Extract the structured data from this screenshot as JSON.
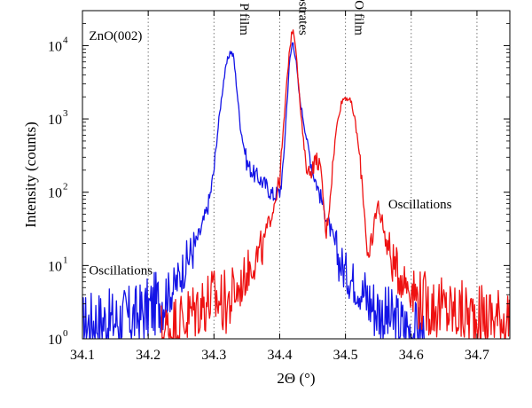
{
  "chart_data": {
    "type": "line",
    "title": "",
    "xlabel": "2Θ (°)",
    "ylabel": "Intensity (counts)",
    "xlim": [
      34.1,
      34.75
    ],
    "ylim": [
      1,
      30000
    ],
    "y_scale": "log",
    "grid": "dotted vertical",
    "x_ticks": [
      34.1,
      34.2,
      34.3,
      34.4,
      34.5,
      34.6,
      34.7
    ],
    "x_tick_labels": [
      "34.1",
      "34.2",
      "34.3",
      "34.4",
      "34.5",
      "34.6",
      "34.7"
    ],
    "y_ticks": [
      1,
      10,
      100,
      1000,
      10000
    ],
    "y_tick_labels": [
      "10",
      "10",
      "10",
      "10",
      "10"
    ],
    "y_tick_exponents": [
      "0",
      "1",
      "2",
      "3",
      "4"
    ],
    "colors": {
      "blue_series": "#1414e6",
      "red_series": "#ee1111",
      "axis": "#000000",
      "grid": "#555555"
    },
    "annotations": [
      {
        "text": "ZnO(002)",
        "x": 34.11,
        "y": 12000,
        "orientation": "horizontal"
      },
      {
        "text": "ZnMgO: P film",
        "x": 34.34,
        "y": 12000,
        "orientation": "vertical"
      },
      {
        "text": "ZnO substrates",
        "x": 34.43,
        "y": 12000,
        "orientation": "vertical"
      },
      {
        "text": "ZnMgO film",
        "x": 34.515,
        "y": 12000,
        "orientation": "vertical"
      },
      {
        "text": "Oscillations",
        "x": 34.11,
        "y": 7.5,
        "orientation": "horizontal"
      },
      {
        "text": "Oscillations",
        "x": 34.565,
        "y": 60,
        "orientation": "horizontal"
      }
    ],
    "series": [
      {
        "color": "#1414e6",
        "x": [
          34.1,
          34.12,
          34.14,
          34.16,
          34.18,
          34.2,
          34.22,
          34.24,
          34.25,
          34.26,
          34.27,
          34.28,
          34.29,
          34.295,
          34.3,
          34.305,
          34.31,
          34.315,
          34.32,
          34.325,
          34.33,
          34.335,
          34.34,
          34.35,
          34.36,
          34.37,
          34.38,
          34.39,
          34.4,
          34.405,
          34.41,
          34.415,
          34.42,
          34.425,
          34.43,
          34.44,
          34.45,
          34.46,
          34.47,
          34.48,
          34.49,
          34.5,
          34.52,
          34.54,
          34.56,
          34.58,
          34.6,
          34.62
        ],
        "y": [
          1.5,
          1.8,
          1.7,
          1.9,
          2.0,
          2.5,
          3.5,
          5,
          8,
          12,
          18,
          30,
          60,
          100,
          200,
          600,
          1500,
          3500,
          6000,
          8500,
          7000,
          2500,
          800,
          250,
          180,
          150,
          120,
          90,
          100,
          200,
          1200,
          6000,
          12000,
          6000,
          2000,
          600,
          200,
          100,
          50,
          25,
          12,
          8,
          5,
          3,
          2,
          1.6,
          1.3,
          1.1
        ]
      },
      {
        "color": "#ee1111",
        "x": [
          34.22,
          34.24,
          34.26,
          34.28,
          34.3,
          34.32,
          34.34,
          34.35,
          34.36,
          34.37,
          34.38,
          34.39,
          34.4,
          34.405,
          34.41,
          34.415,
          34.42,
          34.425,
          34.43,
          34.435,
          34.44,
          34.445,
          34.45,
          34.455,
          34.46,
          34.465,
          34.47,
          34.475,
          34.48,
          34.485,
          34.49,
          34.495,
          34.5,
          34.505,
          34.51,
          34.515,
          34.52,
          34.525,
          34.53,
          34.535,
          34.54,
          34.545,
          34.55,
          34.555,
          34.56,
          34.57,
          34.58,
          34.6,
          34.62,
          34.65,
          34.7,
          34.75
        ],
        "y": [
          1.2,
          1.5,
          2,
          3,
          3.5,
          3,
          5,
          8,
          12,
          14,
          30,
          60,
          150,
          600,
          2500,
          9000,
          18000,
          9000,
          2000,
          600,
          250,
          180,
          220,
          280,
          250,
          120,
          25,
          60,
          200,
          600,
          1200,
          1800,
          2000,
          1900,
          1500,
          900,
          400,
          150,
          40,
          10,
          15,
          50,
          65,
          45,
          25,
          12,
          8,
          5,
          3,
          2.5,
          2,
          2
        ]
      }
    ]
  }
}
